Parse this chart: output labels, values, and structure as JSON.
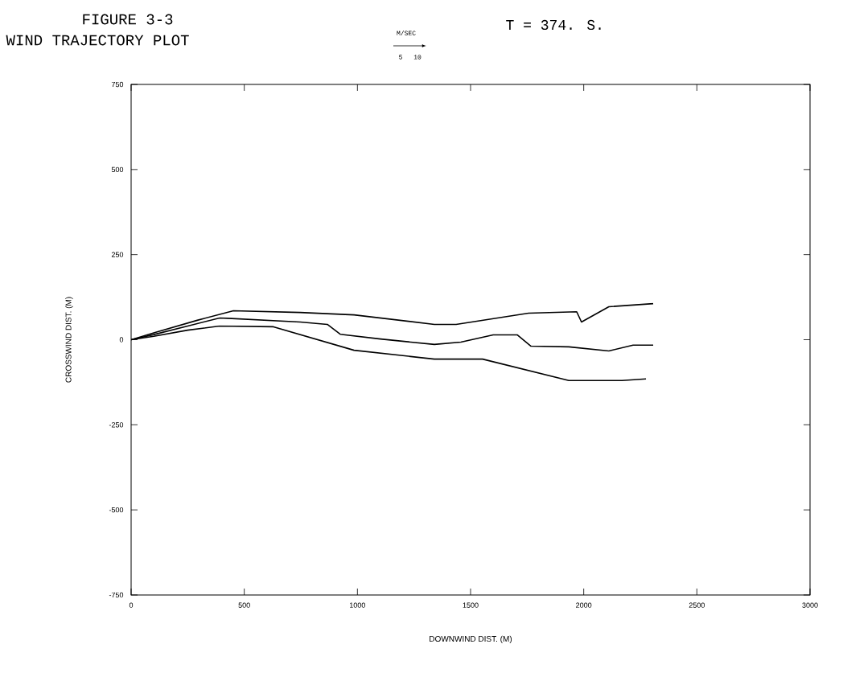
{
  "chart_data": {
    "type": "line",
    "title": "FIGURE 3-3",
    "subtitle": "WIND TRAJECTORY PLOT",
    "xlabel": "DOWNWIND DIST. (M)",
    "ylabel": "CROSSWIND DIST. (M)",
    "annotations": [
      "M/SEC",
      "5",
      "10",
      "T =   374. S."
    ],
    "xlim": [
      0,
      3000
    ],
    "xticks": [
      0,
      500,
      1000,
      1500,
      2000,
      2500,
      3000
    ],
    "ylim": [
      -750,
      750
    ],
    "yticks": [
      -750,
      -500,
      -250,
      0,
      250,
      500,
      750
    ],
    "grid": false,
    "marker": "none",
    "line_style": "solid",
    "series": [
      {
        "color": "#000000",
        "x": [
          0,
          100,
          292,
          452,
          747,
          985,
          1340,
          1436,
          1756,
          1969,
          1990,
          2111,
          2307
        ],
        "values": [
          0,
          20,
          57,
          85,
          80,
          73,
          45,
          45,
          78,
          82,
          52,
          97,
          106
        ]
      },
      {
        "color": "#000000",
        "x": [
          0,
          100,
          250,
          391,
          747,
          867,
          924,
          1102,
          1340,
          1457,
          1600,
          1707,
          1767,
          1934,
          2111,
          2218,
          2307
        ],
        "values": [
          0,
          15,
          40,
          64,
          52,
          45,
          16,
          2,
          -14,
          -7,
          14,
          14,
          -19,
          -21,
          -33,
          -16,
          -16
        ]
      },
      {
        "color": "#000000",
        "x": [
          0,
          100,
          250,
          391,
          629,
          985,
          1340,
          1553,
          1934,
          2169,
          2275
        ],
        "values": [
          0,
          10,
          28,
          40,
          38,
          -31,
          -57,
          -57,
          -120,
          -120,
          -115
        ]
      }
    ]
  }
}
